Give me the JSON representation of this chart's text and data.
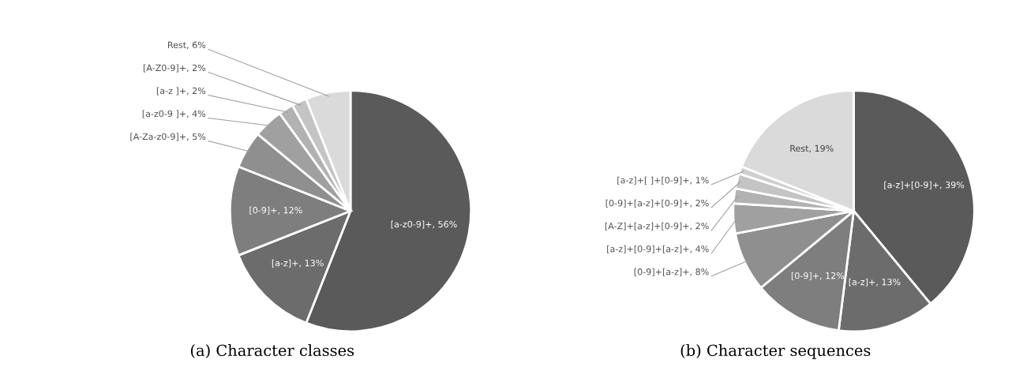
{
  "chart_data": [
    {
      "type": "pie",
      "title": "(a) Character classes",
      "categories": [
        "[a-z0-9]+, 56%",
        "[a-z]+, 13%",
        "[0-9]+, 12%",
        "[A-Za-z0-9]+, 5%",
        "[a-z0-9 ]+, 4%",
        "[a-z ]+, 2%",
        "[A-Z0-9]+, 2%",
        "Rest, 6%"
      ],
      "values": [
        56,
        13,
        12,
        5,
        4,
        2,
        2,
        6
      ],
      "colors": [
        "#5a5a5a",
        "#6c6c6c",
        "#7e7e7e",
        "#8f8f8f",
        "#a0a0a0",
        "#b2b2b2",
        "#c4c4c4",
        "#dadada"
      ]
    },
    {
      "type": "pie",
      "title": "(b) Character sequences",
      "categories": [
        "[a-z]+[0-9]+, 39%",
        "[a-z]+, 13%",
        "[0-9]+, 12%",
        "[0-9]+[a-z]+, 8%",
        "[a-z]+[0-9]+[a-z]+, 4%",
        "[A-Z]+[a-z]+[0-9]+, 2%",
        "[0-9]+[a-z]+[0-9]+, 2%",
        "[a-z]+[ ]+[0-9]+, 1%",
        "Rest, 19%"
      ],
      "values": [
        39,
        13,
        12,
        8,
        4,
        2,
        2,
        1,
        19
      ],
      "colors": [
        "#5a5a5a",
        "#6c6c6c",
        "#7e7e7e",
        "#8f8f8f",
        "#a0a0a0",
        "#b2b2b2",
        "#c4c4c4",
        "#cfcfcf",
        "#dadada"
      ]
    }
  ]
}
